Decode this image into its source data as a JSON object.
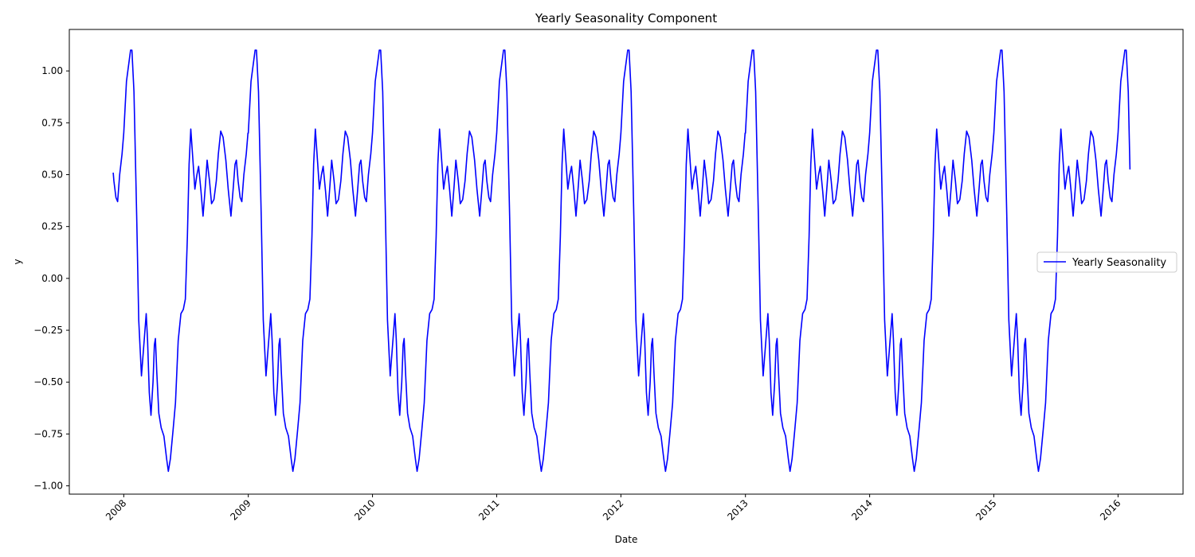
{
  "chart_data": {
    "type": "line",
    "title": "Yearly Seasonality Component",
    "xlabel": "Date",
    "ylabel": "y",
    "x_range": [
      "2007-07-25",
      "2016-07-10"
    ],
    "ylim": [
      -1.04,
      1.2
    ],
    "x_ticks": [
      "2008",
      "2009",
      "2010",
      "2011",
      "2012",
      "2013",
      "2014",
      "2015",
      "2016"
    ],
    "y_ticks": [
      "1.00",
      "0.75",
      "0.50",
      "0.25",
      "0.00",
      "−0.25",
      "−0.50",
      "−0.75",
      "−1.00"
    ],
    "y_tick_values": [
      1.0,
      0.75,
      0.5,
      0.25,
      0.0,
      -0.25,
      -0.5,
      -0.75,
      -1.0
    ],
    "grid": false,
    "legend_position": "center-right",
    "series": [
      {
        "name": "Yearly Seasonality",
        "color": "#0000ff",
        "x_start": "2007-12-01",
        "x_end": "2016-02-05",
        "annual_pattern": {
          "x_unit": "day of year",
          "y_unit": "y",
          "points": [
            [
              0,
              0.7
            ],
            [
              8,
              0.95
            ],
            [
              20,
              1.1
            ],
            [
              24,
              1.1
            ],
            [
              30,
              0.9
            ],
            [
              38,
              0.3
            ],
            [
              44,
              -0.2
            ],
            [
              52,
              -0.47
            ],
            [
              60,
              -0.3
            ],
            [
              66,
              -0.17
            ],
            [
              70,
              -0.3
            ],
            [
              75,
              -0.55
            ],
            [
              80,
              -0.66
            ],
            [
              86,
              -0.5
            ],
            [
              90,
              -0.32
            ],
            [
              93,
              -0.29
            ],
            [
              97,
              -0.45
            ],
            [
              103,
              -0.65
            ],
            [
              110,
              -0.72
            ],
            [
              118,
              -0.76
            ],
            [
              126,
              -0.87
            ],
            [
              131,
              -0.93
            ],
            [
              137,
              -0.87
            ],
            [
              145,
              -0.73
            ],
            [
              152,
              -0.6
            ],
            [
              160,
              -0.3
            ],
            [
              168,
              -0.17
            ],
            [
              175,
              -0.15
            ],
            [
              181,
              -0.1
            ],
            [
              187,
              0.2
            ],
            [
              192,
              0.55
            ],
            [
              197,
              0.72
            ],
            [
              202,
              0.6
            ],
            [
              209,
              0.43
            ],
            [
              215,
              0.5
            ],
            [
              220,
              0.54
            ],
            [
              227,
              0.42
            ],
            [
              233,
              0.3
            ],
            [
              240,
              0.45
            ],
            [
              245,
              0.57
            ],
            [
              252,
              0.47
            ],
            [
              258,
              0.36
            ],
            [
              265,
              0.38
            ],
            [
              272,
              0.47
            ],
            [
              278,
              0.6
            ],
            [
              285,
              0.71
            ],
            [
              292,
              0.68
            ],
            [
              300,
              0.57
            ],
            [
              307,
              0.43
            ],
            [
              315,
              0.3
            ],
            [
              321,
              0.42
            ],
            [
              327,
              0.55
            ],
            [
              331,
              0.57
            ],
            [
              336,
              0.47
            ],
            [
              342,
              0.39
            ],
            [
              347,
              0.37
            ],
            [
              353,
              0.5
            ],
            [
              360,
              0.6
            ],
            [
              365,
              0.7
            ]
          ]
        }
      }
    ]
  }
}
